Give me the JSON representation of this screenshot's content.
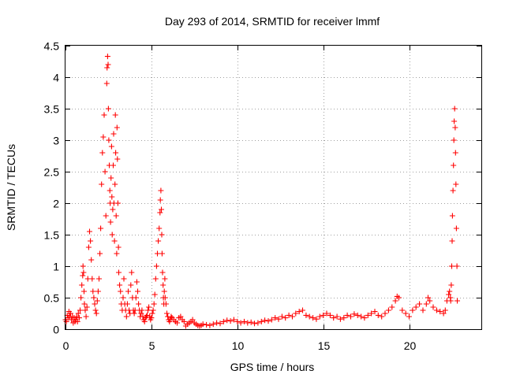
{
  "chart_data": {
    "type": "scatter",
    "title": "Day 293 of 2014, SRMTID for receiver lmmf",
    "xlabel": "GPS time / hours",
    "ylabel": "SRMTID / TECUs",
    "xlim": [
      0,
      24.2
    ],
    "ylim": [
      0,
      4.5
    ],
    "xticks": [
      0,
      5,
      10,
      15,
      20
    ],
    "xtick_labels": [
      "0",
      "5",
      "10",
      "15",
      "20"
    ],
    "yticks": [
      0,
      0.5,
      1,
      1.5,
      2,
      2.5,
      3,
      3.5,
      4,
      4.5
    ],
    "ytick_labels": [
      "0",
      "0.5",
      "1",
      "1.5",
      "2",
      "2.5",
      "3",
      "3.5",
      "4",
      "4.5"
    ],
    "grid": true,
    "marker": "plus",
    "color": "#ff0000",
    "series": [
      {
        "name": "SRMTID",
        "x": [
          0.0,
          0.05,
          0.1,
          0.15,
          0.2,
          0.25,
          0.3,
          0.35,
          0.4,
          0.45,
          0.5,
          0.55,
          0.6,
          0.65,
          0.7,
          0.75,
          0.8,
          0.85,
          0.9,
          0.95,
          1.0,
          1.02,
          1.05,
          1.08,
          1.1,
          1.15,
          1.2,
          1.25,
          1.3,
          1.35,
          1.4,
          1.45,
          1.5,
          1.55,
          1.6,
          1.65,
          1.7,
          1.75,
          1.8,
          1.85,
          1.9,
          1.95,
          2.0,
          2.05,
          2.1,
          2.15,
          2.2,
          2.25,
          2.3,
          2.35,
          2.4,
          2.42,
          2.45,
          2.48,
          2.5,
          2.52,
          2.55,
          2.58,
          2.6,
          2.62,
          2.65,
          2.68,
          2.7,
          2.72,
          2.75,
          2.78,
          2.8,
          2.82,
          2.85,
          2.88,
          2.9,
          2.92,
          2.95,
          2.98,
          3.0,
          3.02,
          3.05,
          3.08,
          3.1,
          3.15,
          3.2,
          3.25,
          3.3,
          3.35,
          3.4,
          3.45,
          3.5,
          3.55,
          3.6,
          3.65,
          3.7,
          3.75,
          3.8,
          3.85,
          3.9,
          3.95,
          4.0,
          4.05,
          4.1,
          4.15,
          4.2,
          4.25,
          4.3,
          4.35,
          4.4,
          4.45,
          4.5,
          4.55,
          4.6,
          4.65,
          4.7,
          4.75,
          4.8,
          4.85,
          4.9,
          4.95,
          5.0,
          5.05,
          5.1,
          5.15,
          5.2,
          5.25,
          5.3,
          5.35,
          5.4,
          5.45,
          5.5,
          5.52,
          5.55,
          5.58,
          5.6,
          5.62,
          5.65,
          5.68,
          5.7,
          5.72,
          5.75,
          5.78,
          5.8,
          5.85,
          5.9,
          5.95,
          6.0,
          6.05,
          6.1,
          6.15,
          6.2,
          6.3,
          6.4,
          6.5,
          6.6,
          6.7,
          6.8,
          6.9,
          7.0,
          7.1,
          7.2,
          7.3,
          7.4,
          7.5,
          7.6,
          7.7,
          7.8,
          7.9,
          8.0,
          8.2,
          8.4,
          8.6,
          8.8,
          9.0,
          9.2,
          9.4,
          9.6,
          9.8,
          10.0,
          10.2,
          10.4,
          10.6,
          10.8,
          11.0,
          11.2,
          11.4,
          11.6,
          11.8,
          12.0,
          12.2,
          12.4,
          12.6,
          12.8,
          13.0,
          13.2,
          13.4,
          13.6,
          13.8,
          14.0,
          14.2,
          14.4,
          14.6,
          14.8,
          15.0,
          15.2,
          15.4,
          15.6,
          15.8,
          16.0,
          16.2,
          16.4,
          16.6,
          16.8,
          17.0,
          17.2,
          17.4,
          17.6,
          17.8,
          18.0,
          18.2,
          18.4,
          18.6,
          18.8,
          19.0,
          19.2,
          19.3,
          19.4,
          19.6,
          19.8,
          20.0,
          20.2,
          20.4,
          20.6,
          20.8,
          21.0,
          21.1,
          21.2,
          21.4,
          21.6,
          21.8,
          22.0,
          22.1,
          22.2,
          22.3,
          22.35,
          22.4,
          22.42,
          22.45,
          22.48,
          22.5,
          22.52,
          22.55,
          22.58,
          22.6,
          22.62,
          22.65,
          22.68,
          22.7,
          22.72,
          22.75,
          22.78,
          22.8
        ],
        "y": [
          0.15,
          0.12,
          0.22,
          0.18,
          0.28,
          0.2,
          0.25,
          0.15,
          0.2,
          0.1,
          0.18,
          0.12,
          0.15,
          0.2,
          0.12,
          0.25,
          0.18,
          0.3,
          0.5,
          0.7,
          0.85,
          1.0,
          0.9,
          0.6,
          0.4,
          0.3,
          0.2,
          0.35,
          0.8,
          1.3,
          1.55,
          1.4,
          1.1,
          0.8,
          0.6,
          0.5,
          0.4,
          0.3,
          0.25,
          0.45,
          0.6,
          0.8,
          1.2,
          1.6,
          2.3,
          2.8,
          3.05,
          3.4,
          2.5,
          1.8,
          3.9,
          4.15,
          4.33,
          4.2,
          3.5,
          3.0,
          2.6,
          2.2,
          2.0,
          1.7,
          2.4,
          2.9,
          2.1,
          1.5,
          1.9,
          2.6,
          3.1,
          2.0,
          1.4,
          2.3,
          3.4,
          2.8,
          1.8,
          1.2,
          3.2,
          2.7,
          2.0,
          1.3,
          0.9,
          0.7,
          0.6,
          0.4,
          0.3,
          0.5,
          0.8,
          0.4,
          0.3,
          0.2,
          0.4,
          0.6,
          0.3,
          0.25,
          0.7,
          0.9,
          0.5,
          0.3,
          0.25,
          0.3,
          0.5,
          0.75,
          0.6,
          0.4,
          0.3,
          0.2,
          0.25,
          0.3,
          0.2,
          0.15,
          0.12,
          0.18,
          0.2,
          0.22,
          0.3,
          0.35,
          0.2,
          0.15,
          0.18,
          0.25,
          0.3,
          0.4,
          0.55,
          0.8,
          1.0,
          1.2,
          1.4,
          1.6,
          1.85,
          2.05,
          2.2,
          1.9,
          1.5,
          1.2,
          0.9,
          0.7,
          0.5,
          0.4,
          0.6,
          0.8,
          0.5,
          0.4,
          0.25,
          0.2,
          0.15,
          0.12,
          0.15,
          0.2,
          0.18,
          0.15,
          0.12,
          0.1,
          0.18,
          0.2,
          0.15,
          0.12,
          0.05,
          0.08,
          0.1,
          0.12,
          0.15,
          0.1,
          0.08,
          0.06,
          0.05,
          0.06,
          0.08,
          0.07,
          0.06,
          0.08,
          0.1,
          0.09,
          0.12,
          0.14,
          0.13,
          0.15,
          0.12,
          0.1,
          0.12,
          0.1,
          0.11,
          0.09,
          0.1,
          0.12,
          0.14,
          0.13,
          0.15,
          0.18,
          0.16,
          0.2,
          0.18,
          0.22,
          0.2,
          0.25,
          0.28,
          0.3,
          0.22,
          0.2,
          0.18,
          0.16,
          0.2,
          0.22,
          0.25,
          0.22,
          0.18,
          0.2,
          0.16,
          0.18,
          0.22,
          0.2,
          0.24,
          0.22,
          0.2,
          0.18,
          0.22,
          0.25,
          0.28,
          0.22,
          0.2,
          0.25,
          0.3,
          0.35,
          0.45,
          0.52,
          0.5,
          0.3,
          0.25,
          0.2,
          0.3,
          0.35,
          0.4,
          0.3,
          0.4,
          0.5,
          0.45,
          0.35,
          0.3,
          0.28,
          0.25,
          0.3,
          0.45,
          0.55,
          0.6,
          0.5,
          0.45,
          0.7,
          1.0,
          1.4,
          1.8,
          2.2,
          2.6,
          3.0,
          3.3,
          3.5,
          3.2,
          2.8,
          2.3,
          1.6,
          1.0,
          0.45
        ]
      }
    ]
  }
}
